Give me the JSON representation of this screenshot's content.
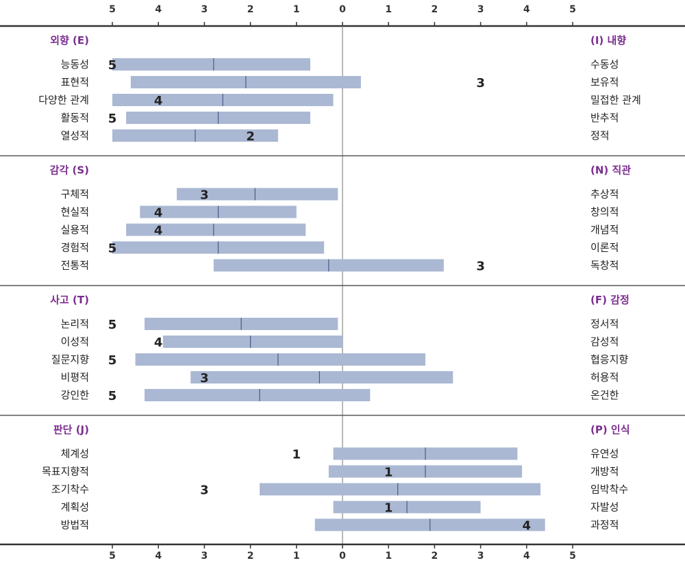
{
  "colors": {
    "bar": "#aab8d3",
    "median_line": "#4a5a86",
    "header": "#7b2d8e",
    "axis": "#333333",
    "divider": "#555555",
    "center": "#888888"
  },
  "axis_ticks": [
    "5",
    "4",
    "3",
    "2",
    "1",
    "0",
    "1",
    "2",
    "3",
    "4",
    "5"
  ],
  "chart_data": {
    "type": "bar",
    "x_range": [
      -5,
      5
    ],
    "note_x": "negative = left-side trait, positive = right-side trait",
    "sections": [
      {
        "left_header": "외향 (E)",
        "right_header": "(I) 내향",
        "rows": [
          {
            "left": "능동성",
            "right": "수동성",
            "start": -5.0,
            "end": -0.7,
            "median": -2.8,
            "score": "5",
            "score_pos": -5.0
          },
          {
            "left": "표현적",
            "right": "보유적",
            "start": -4.6,
            "end": 0.4,
            "median": -2.1,
            "score": "3",
            "score_pos": 3.0
          },
          {
            "left": "다양한 관계",
            "right": "밀접한 관계",
            "start": -5.0,
            "end": -0.2,
            "median": -2.6,
            "score": "4",
            "score_pos": -4.0
          },
          {
            "left": "활동적",
            "right": "반추적",
            "start": -4.7,
            "end": -0.7,
            "median": -2.7,
            "score": "5",
            "score_pos": -5.0
          },
          {
            "left": "열성적",
            "right": "정적",
            "start": -5.0,
            "end": -1.4,
            "median": -3.2,
            "score": "2",
            "score_pos": -2.0
          }
        ]
      },
      {
        "left_header": "감각 (S)",
        "right_header": "(N) 직관",
        "rows": [
          {
            "left": "구체적",
            "right": "추상적",
            "start": -3.6,
            "end": -0.1,
            "median": -1.9,
            "score": "3",
            "score_pos": -3.0
          },
          {
            "left": "현실적",
            "right": "창의적",
            "start": -4.4,
            "end": -1.0,
            "median": -2.7,
            "score": "4",
            "score_pos": -4.0
          },
          {
            "left": "실용적",
            "right": "개념적",
            "start": -4.7,
            "end": -0.8,
            "median": -2.8,
            "score": "4",
            "score_pos": -4.0
          },
          {
            "left": "경험적",
            "right": "이론적",
            "start": -5.0,
            "end": -0.4,
            "median": -2.7,
            "score": "5",
            "score_pos": -5.0
          },
          {
            "left": "전통적",
            "right": "독창적",
            "start": -2.8,
            "end": 2.2,
            "median": -0.3,
            "score": "3",
            "score_pos": 3.0
          }
        ]
      },
      {
        "left_header": "사고 (T)",
        "right_header": "(F) 감정",
        "rows": [
          {
            "left": "논리적",
            "right": "정서적",
            "start": -4.3,
            "end": -0.1,
            "median": -2.2,
            "score": "5",
            "score_pos": -5.0
          },
          {
            "left": "이성적",
            "right": "감성적",
            "start": -3.9,
            "end": 0.0,
            "median": -2.0,
            "score": "4",
            "score_pos": -4.0
          },
          {
            "left": "질문지향",
            "right": "협응지향",
            "start": -4.5,
            "end": 1.8,
            "median": -1.4,
            "score": "5",
            "score_pos": -5.0
          },
          {
            "left": "비평적",
            "right": "허용적",
            "start": -3.3,
            "end": 2.4,
            "median": -0.5,
            "score": "3",
            "score_pos": -3.0
          },
          {
            "left": "강인한",
            "right": "온건한",
            "start": -4.3,
            "end": 0.6,
            "median": -1.8,
            "score": "5",
            "score_pos": -5.0
          }
        ]
      },
      {
        "left_header": "판단 (J)",
        "right_header": "(P) 인식",
        "rows": [
          {
            "left": "체계성",
            "right": "유연성",
            "start": -0.2,
            "end": 3.8,
            "median": 1.8,
            "score": "1",
            "score_pos": -1.0
          },
          {
            "left": "목표지향적",
            "right": "개방적",
            "start": -0.3,
            "end": 3.9,
            "median": 1.8,
            "score": "1",
            "score_pos": 1.0
          },
          {
            "left": "조기착수",
            "right": "임박착수",
            "start": -1.8,
            "end": 4.3,
            "median": 1.2,
            "score": "3",
            "score_pos": -3.0
          },
          {
            "left": "계획성",
            "right": "자발성",
            "start": -0.2,
            "end": 3.0,
            "median": 1.4,
            "score": "1",
            "score_pos": 1.0
          },
          {
            "left": "방법적",
            "right": "과정적",
            "start": -0.6,
            "end": 4.4,
            "median": 1.9,
            "score": "4",
            "score_pos": 4.0
          }
        ]
      }
    ]
  }
}
